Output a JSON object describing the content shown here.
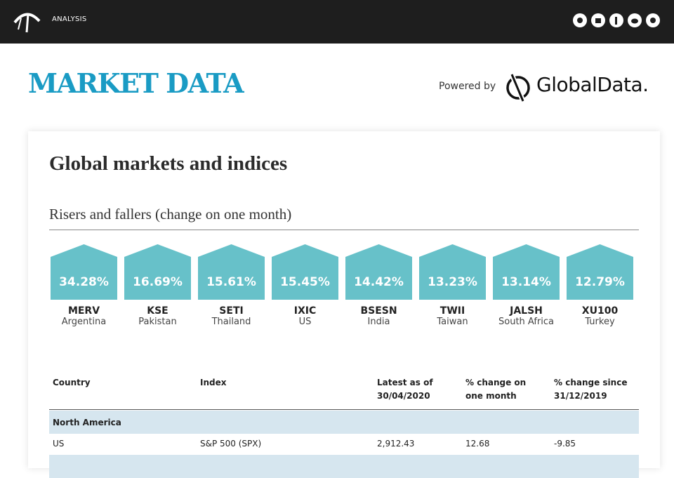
{
  "header": {
    "nav": "ANALYSIS"
  },
  "banner": {
    "title": "MARKET DATA",
    "powered_by": "Powered by",
    "brand": "GlobalData."
  },
  "card": {
    "title": "Global markets and indices",
    "subtitle": "Risers and fallers (change on one month)",
    "tiles": [
      {
        "change": "34.28%",
        "code": "MERV",
        "country": "Argentina"
      },
      {
        "change": "16.69%",
        "code": "KSE",
        "country": "Pakistan"
      },
      {
        "change": "15.61%",
        "code": "SETI",
        "country": "Thailand"
      },
      {
        "change": "15.45%",
        "code": "IXIC",
        "country": "US"
      },
      {
        "change": "14.42%",
        "code": "BSESN",
        "country": "India"
      },
      {
        "change": "13.23%",
        "code": "TWII",
        "country": "Taiwan"
      },
      {
        "change": "13.14%",
        "code": "JALSH",
        "country": "South Africa"
      },
      {
        "change": "12.79%",
        "code": "XU100",
        "country": "Turkey"
      }
    ],
    "table": {
      "columns": [
        "Country",
        "Index",
        "Latest as of 30/04/2020",
        "% change on one month",
        "% change since 31/12/2019"
      ],
      "groups": [
        {
          "name": "North America",
          "rows": [
            [
              "US",
              "S&P 500 (SPX)",
              "2,912.43",
              "12.68",
              "-9.85"
            ]
          ]
        }
      ]
    }
  }
}
